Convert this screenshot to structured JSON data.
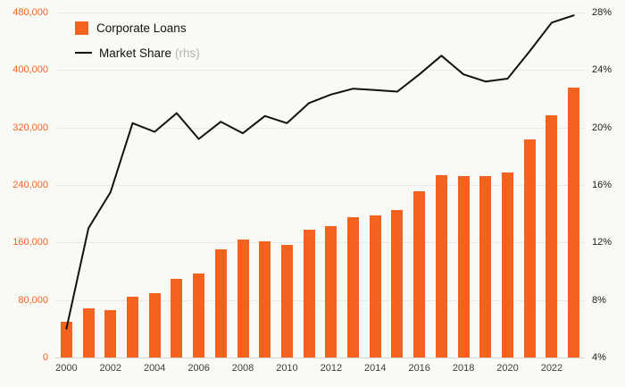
{
  "colors": {
    "background": "#f9f9f6",
    "bar": "#f4621f",
    "line": "#111111",
    "grid": "#eaeae5",
    "axis_line": "#d6d6d0",
    "left_axis_text": "#f4621f",
    "right_axis_text": "#1c1c1c",
    "x_axis_text": "#3d3d3d",
    "rhs_suffix_text": "#b3b3af"
  },
  "chart_data": {
    "type": "bar+line",
    "categories": [
      "2000",
      "2001",
      "2002",
      "2003",
      "2004",
      "2005",
      "2006",
      "2007",
      "2008",
      "2009",
      "2010",
      "2011",
      "2012",
      "2013",
      "2014",
      "2015",
      "2016",
      "2017",
      "2018",
      "2019",
      "2020",
      "2021",
      "2022",
      "2023"
    ],
    "series": [
      {
        "name": "Corporate Loans",
        "type": "bar",
        "axis": "left",
        "color": "#f4621f",
        "values": [
          50000,
          68000,
          66000,
          85000,
          90000,
          110000,
          117000,
          150000,
          164000,
          162000,
          157000,
          178000,
          183000,
          195000,
          198000,
          205000,
          231000,
          254000,
          252000,
          253000,
          257000,
          304000,
          337000,
          376000
        ]
      },
      {
        "name": "Market Share",
        "type": "line",
        "axis": "right",
        "color": "#111111",
        "values": [
          6.0,
          13.0,
          15.5,
          20.3,
          19.7,
          21.0,
          19.2,
          20.4,
          19.6,
          20.8,
          20.3,
          21.7,
          22.3,
          22.7,
          22.6,
          22.5,
          23.7,
          25.0,
          23.7,
          23.2,
          23.4,
          25.3,
          27.3,
          27.8
        ]
      }
    ],
    "left_axis": {
      "min": 0,
      "max": 480000,
      "ticks": [
        0,
        80000,
        160000,
        240000,
        320000,
        400000,
        480000
      ],
      "tick_labels": [
        "0",
        "80,000",
        "160,000",
        "240,000",
        "320,000",
        "400,000",
        "480,000"
      ]
    },
    "right_axis": {
      "min": 4,
      "max": 28,
      "ticks": [
        4,
        8,
        12,
        16,
        20,
        24,
        28
      ],
      "tick_labels": [
        "4%",
        "8%",
        "12%",
        "16%",
        "20%",
        "24%",
        "28%"
      ]
    },
    "x_tick_every": 2,
    "legend": [
      {
        "label": "Corporate Loans",
        "suffix": ""
      },
      {
        "label": "Market Share",
        "suffix": "(rhs)"
      }
    ],
    "grid": true,
    "legend_position": "top-left"
  }
}
